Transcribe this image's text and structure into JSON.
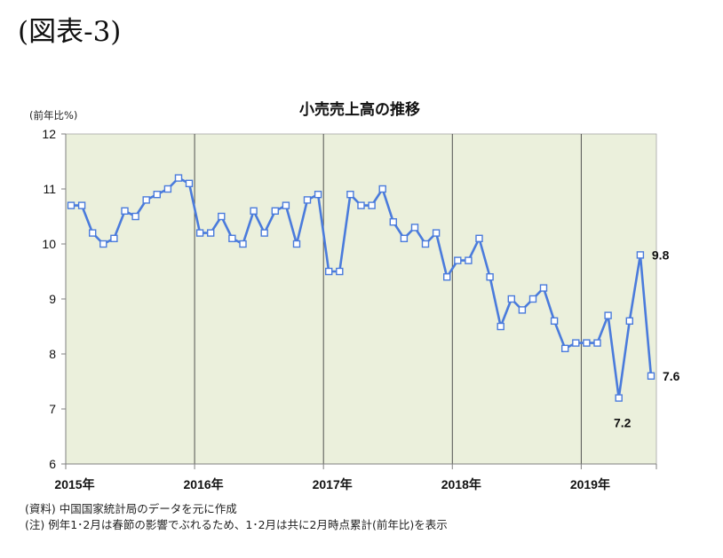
{
  "figure_label": "(図表-3)",
  "chart_data": {
    "type": "line",
    "title": "小売売上高の推移",
    "ylabel": "(前年比%)",
    "xlabel": "",
    "ylim": [
      6,
      12
    ],
    "yticks": [
      12,
      11,
      10,
      9,
      8,
      7,
      6
    ],
    "x_tick_labels": [
      "2015年",
      "2016年",
      "2017年",
      "2018年",
      "2019年"
    ],
    "x": [
      "2015-01",
      "2015-02",
      "2015-03",
      "2015-04",
      "2015-05",
      "2015-06",
      "2015-07",
      "2015-08",
      "2015-09",
      "2015-10",
      "2015-11",
      "2015-12",
      "2016-01",
      "2016-02",
      "2016-03",
      "2016-04",
      "2016-05",
      "2016-06",
      "2016-07",
      "2016-08",
      "2016-09",
      "2016-10",
      "2016-11",
      "2016-12",
      "2017-01",
      "2017-02",
      "2017-03",
      "2017-04",
      "2017-05",
      "2017-06",
      "2017-07",
      "2017-08",
      "2017-09",
      "2017-10",
      "2017-11",
      "2017-12",
      "2018-01",
      "2018-02",
      "2018-03",
      "2018-04",
      "2018-05",
      "2018-06",
      "2018-07",
      "2018-08",
      "2018-09",
      "2018-10",
      "2018-11",
      "2018-12",
      "2019-01",
      "2019-02",
      "2019-03",
      "2019-04",
      "2019-05",
      "2019-06",
      "2019-07"
    ],
    "series": [
      {
        "marker": "square",
        "values": [
          10.7,
          10.7,
          10.2,
          10.0,
          10.1,
          10.6,
          10.5,
          10.8,
          10.9,
          11.0,
          11.2,
          11.1,
          10.2,
          10.2,
          10.5,
          10.1,
          10.0,
          10.6,
          10.2,
          10.6,
          10.7,
          10.0,
          10.8,
          10.9,
          9.5,
          9.5,
          10.9,
          10.7,
          10.7,
          11.0,
          10.4,
          10.1,
          10.3,
          10.0,
          10.2,
          9.4,
          9.7,
          9.7,
          10.1,
          9.4,
          8.5,
          9.0,
          8.8,
          9.0,
          9.2,
          8.6,
          8.1,
          8.2,
          8.2,
          8.2,
          8.7,
          7.2,
          8.6,
          9.8,
          7.6
        ]
      }
    ],
    "data_labels": [
      {
        "x": "2019-06",
        "text": "9.8",
        "position": "right"
      },
      {
        "x": "2019-04",
        "text": "7.2",
        "position": "below"
      },
      {
        "x": "2019-07",
        "text": "7.6",
        "position": "right"
      }
    ],
    "grid": {
      "x_year_lines": true,
      "y": false
    },
    "colors": {
      "line": "#4a7bdc",
      "marker_fill": "#ffffff",
      "plot_background": "#ebf0dc",
      "year_lines": "#404040"
    }
  },
  "notes": [
    "(資料) 中国国家統計局のデータを元に作成",
    "(注) 例年1･2月は春節の影響でぶれるため、1･2月は共に2月時点累計(前年比)を表示"
  ]
}
